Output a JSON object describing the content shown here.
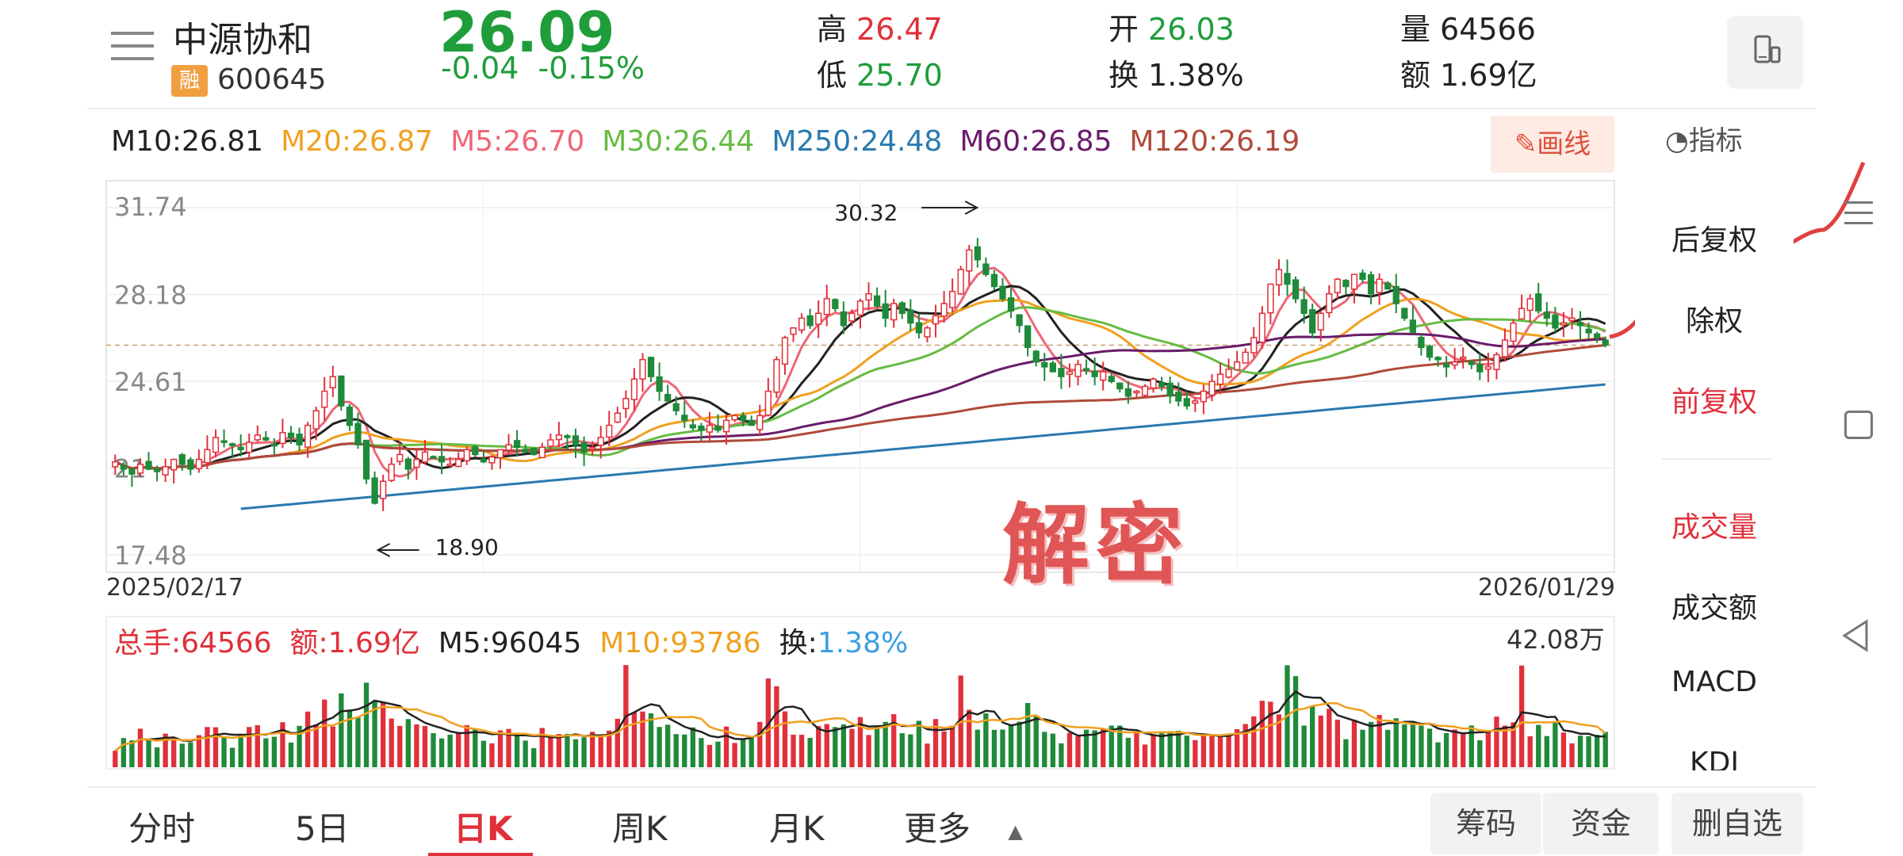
{
  "header": {
    "stock_name": "中源协和",
    "margin_badge": "融",
    "stock_code": "600645",
    "price": "26.09",
    "change": "-0.04",
    "change_pct": "-0.15%",
    "high_label": "高",
    "high": "26.47",
    "low_label": "低",
    "low": "25.70",
    "open_label": "开",
    "open": "26.03",
    "turnover_label": "换",
    "turnover": "1.38%",
    "volume_label": "量",
    "volume": "64566",
    "amount_label": "额",
    "amount": "1.69亿"
  },
  "ma_legend": [
    {
      "text": "M10:26.81",
      "color": "#222222"
    },
    {
      "text": "M20:26.87",
      "color": "#f0a020"
    },
    {
      "text": "M5:26.70",
      "color": "#ee6677"
    },
    {
      "text": "M30:26.44",
      "color": "#66bb44"
    },
    {
      "text": "M250:24.48",
      "color": "#2a7ab0"
    },
    {
      "text": "M60:26.85",
      "color": "#6a1b6a"
    },
    {
      "text": "M120:26.19",
      "color": "#b04a3a"
    }
  ],
  "draw_button": "画线",
  "indicator_button": "指标",
  "side_menu": {
    "items": [
      "后复权",
      "除权",
      "前复权",
      "成交量",
      "成交额",
      "MACD",
      "KDJ"
    ]
  },
  "watermark": "解密",
  "volume_legend": {
    "total": "总手:64566",
    "amount": "额:1.69亿",
    "m5": "M5:96045",
    "m10": "M10:93786",
    "turnover_label": "换:",
    "turnover": "1.38%",
    "max": "42.08万"
  },
  "bottom_tabs": [
    "分时",
    "5日",
    "日K",
    "周K",
    "月K",
    "更多"
  ],
  "bottom_buttons": {
    "chips": "筹码",
    "funds": "资金",
    "remove": "删自选"
  },
  "chart_data": {
    "type": "candlestick",
    "x_start_label": "2025/02/17",
    "x_end_label": "2026/01/29",
    "y_ticks": [
      "31.74",
      "28.18",
      "24.61",
      "21",
      "17.48"
    ],
    "ylim": [
      17.48,
      31.74
    ],
    "annotations": {
      "max": "30.32",
      "min": "18.90"
    },
    "last_close": 26.09,
    "price_closes": [
      21.3,
      21.0,
      20.8,
      21.2,
      21.0,
      20.9,
      21.1,
      21.4,
      21.2,
      21.0,
      21.4,
      21.8,
      22.3,
      22.1,
      22.0,
      21.8,
      22.1,
      22.4,
      22.2,
      22.0,
      22.5,
      22.3,
      22.0,
      22.8,
      23.4,
      24.2,
      24.8,
      23.6,
      22.8,
      22.0,
      20.6,
      19.6,
      20.5,
      21.2,
      21.6,
      21.0,
      21.4,
      21.7,
      21.5,
      21.3,
      21.2,
      21.4,
      21.8,
      21.6,
      21.3,
      21.5,
      21.8,
      22.0,
      21.9,
      21.7,
      21.6,
      21.9,
      22.2,
      22.4,
      22.3,
      22.0,
      21.7,
      21.9,
      22.3,
      22.8,
      23.3,
      23.9,
      24.7,
      25.5,
      24.8,
      24.2,
      23.8,
      23.4,
      23.0,
      22.7,
      22.6,
      22.8,
      22.6,
      23.0,
      23.2,
      23.0,
      22.8,
      23.2,
      24.2,
      25.5,
      26.4,
      26.8,
      27.2,
      26.9,
      27.4,
      28.0,
      27.6,
      26.9,
      27.4,
      27.9,
      28.2,
      27.7,
      27.2,
      27.8,
      27.4,
      27.0,
      26.6,
      26.8,
      27.3,
      27.8,
      28.3,
      29.2,
      30.0,
      29.6,
      29.0,
      28.5,
      28.0,
      27.5,
      26.9,
      26.0,
      25.4,
      25.2,
      25.0,
      24.8,
      25.0,
      25.3,
      25.1,
      24.8,
      25.0,
      24.6,
      24.3,
      24.0,
      24.2,
      24.4,
      24.7,
      24.4,
      24.0,
      23.8,
      23.6,
      23.8,
      24.2,
      24.6,
      24.9,
      25.1,
      25.4,
      25.8,
      26.4,
      27.4,
      28.6,
      29.2,
      28.6,
      28.0,
      27.4,
      26.6,
      27.4,
      28.2,
      28.8,
      28.5,
      29.0,
      28.8,
      28.2,
      28.8,
      28.4,
      27.8,
      27.2,
      26.6,
      26.0,
      25.6,
      25.5,
      25.2,
      25.4,
      25.6,
      25.3,
      25.0,
      25.2,
      25.7,
      26.3,
      27.0,
      27.6,
      28.0,
      27.5,
      27.2,
      26.8,
      27.0,
      27.2,
      26.9,
      26.6,
      26.4,
      26.1
    ],
    "series": [
      {
        "name": "M5",
        "color": "#ee6677"
      },
      {
        "name": "M10",
        "color": "#222222"
      },
      {
        "name": "M20",
        "color": "#f0a020"
      },
      {
        "name": "M30",
        "color": "#66bb44"
      },
      {
        "name": "M60",
        "color": "#6a1b6a"
      },
      {
        "name": "M120",
        "color": "#b04a3a"
      },
      {
        "name": "M250",
        "color": "#2a7ab0"
      }
    ],
    "volume_max": 420800
  }
}
